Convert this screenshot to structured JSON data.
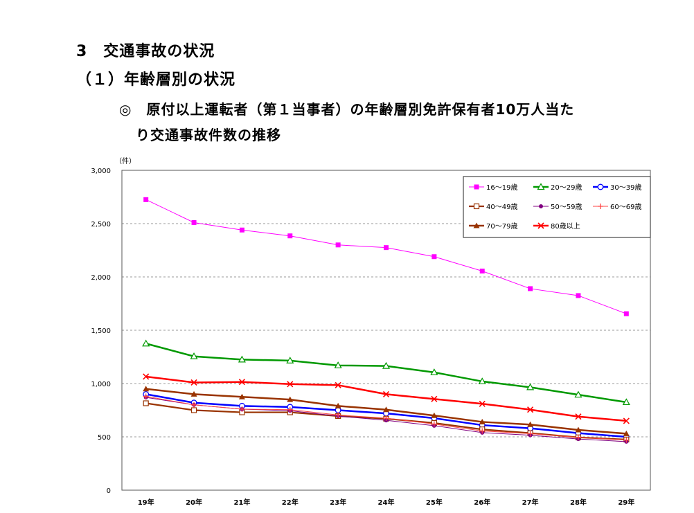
{
  "headings": {
    "section": "3　交通事故の状況",
    "subsection": "（１）年齢層別の状況",
    "description_line1": "◎　原付以上運転者（第１当事者）の年齢層別免許保有者10万人当た",
    "description_line2": "り交通事故件数の推移"
  },
  "chart_data": {
    "type": "line",
    "title": "",
    "xlabel": "",
    "ylabel": "（件）",
    "ylim": [
      0,
      3000
    ],
    "yticks": [
      0,
      500,
      1000,
      1500,
      2000,
      2500,
      3000
    ],
    "ytick_labels": [
      "0",
      "500",
      "1,000",
      "1,500",
      "2,000",
      "2,500",
      "3,000"
    ],
    "grid": "horizontal-dashed",
    "legend_position": "top-right",
    "categories": [
      "19年",
      "20年",
      "21年",
      "22年",
      "23年",
      "24年",
      "25年",
      "26年",
      "27年",
      "28年",
      "29年"
    ],
    "series": [
      {
        "name": "16～19歳",
        "color": "#ff00ff",
        "marker": "filled-square",
        "values": [
          2725,
          2510,
          2440,
          2385,
          2300,
          2275,
          2190,
          2055,
          1890,
          1825,
          1655
        ]
      },
      {
        "name": "20～29歳",
        "color": "#009900",
        "marker": "open-triangle",
        "values": [
          1375,
          1255,
          1225,
          1215,
          1170,
          1165,
          1105,
          1020,
          965,
          895,
          825
        ]
      },
      {
        "name": "30～39歳",
        "color": "#0000ff",
        "marker": "open-circle",
        "values": [
          900,
          820,
          790,
          780,
          750,
          720,
          675,
          610,
          580,
          535,
          500
        ]
      },
      {
        "name": "40～49歳",
        "color": "#993300",
        "marker": "open-square",
        "values": [
          815,
          750,
          730,
          730,
          695,
          670,
          630,
          570,
          535,
          495,
          475
        ]
      },
      {
        "name": "50～59歳",
        "color": "#800080",
        "marker": "filled-circle",
        "values": [
          870,
          800,
          760,
          745,
          695,
          655,
          605,
          540,
          515,
          480,
          455
        ]
      },
      {
        "name": "60～69歳",
        "color": "#ff4444",
        "marker": "plus",
        "values": [
          880,
          800,
          760,
          755,
          705,
          675,
          620,
          555,
          530,
          495,
          470
        ]
      },
      {
        "name": "70～79歳",
        "color": "#993300",
        "marker": "filled-triangle",
        "values": [
          950,
          900,
          875,
          850,
          790,
          755,
          700,
          640,
          615,
          565,
          530
        ]
      },
      {
        "name": "80歳以上",
        "color": "#ff0000",
        "marker": "cross",
        "values": [
          1065,
          1010,
          1015,
          995,
          985,
          900,
          855,
          810,
          755,
          690,
          650
        ]
      }
    ]
  }
}
